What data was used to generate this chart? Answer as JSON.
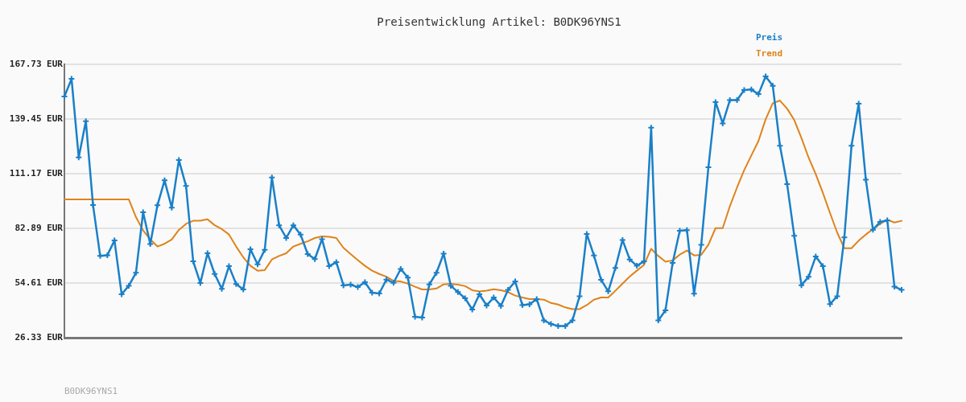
{
  "chart_data": {
    "type": "line",
    "title": "Preisentwicklung Artikel: B0DK96YNS1",
    "annotations": [
      "B0DK96YNS1"
    ],
    "categories": [
      null,
      null,
      null,
      null,
      null,
      null,
      null,
      null,
      null,
      null,
      null,
      null,
      null,
      null,
      null,
      null,
      null,
      null,
      null,
      null,
      null,
      null,
      null,
      null,
      null,
      null,
      null,
      null,
      null,
      null,
      null,
      null,
      null,
      null,
      null,
      null,
      null,
      null,
      null,
      null,
      null,
      null,
      null,
      null,
      null,
      null,
      null,
      null,
      null,
      null,
      null,
      null,
      null,
      null,
      null,
      null,
      null,
      null,
      null,
      null,
      null,
      null,
      null,
      null,
      null,
      null,
      null,
      null,
      null,
      null,
      null,
      null,
      null,
      null,
      null,
      null,
      null,
      null,
      null,
      null,
      null,
      null,
      null,
      null,
      null,
      null,
      null,
      null,
      null,
      null,
      null,
      null,
      null,
      null,
      null,
      null,
      null,
      null,
      null,
      null,
      null,
      null,
      null,
      null,
      null,
      null,
      null,
      null,
      null,
      null,
      null,
      null,
      null,
      null,
      null,
      null,
      null,
      null
    ],
    "series": [
      {
        "name": "Preis",
        "color": "#1a80c8",
        "marker": "cross",
        "values": [
          151.1,
          160.2,
          119.6,
          138.3,
          94.9,
          68.6,
          69.0,
          76.6,
          48.8,
          53.2,
          59.9,
          91.2,
          74.8,
          94.8,
          107.7,
          93.6,
          118.2,
          104.8,
          65.8,
          54.6,
          70.0,
          59.3,
          51.6,
          63.3,
          54.1,
          51.3,
          72.1,
          64.3,
          71.8,
          109.2,
          84.5,
          77.9,
          84.5,
          79.7,
          69.6,
          67.0,
          77.3,
          63.3,
          65.4,
          53.4,
          53.8,
          52.5,
          55.0,
          49.6,
          49.2,
          56.4,
          54.7,
          61.9,
          57.4,
          37.1,
          36.7,
          53.9,
          59.9,
          69.8,
          53.2,
          49.9,
          46.7,
          40.9,
          48.8,
          43.0,
          47.1,
          42.8,
          51.1,
          55.4,
          43.2,
          43.6,
          46.3,
          35.3,
          33.4,
          32.4,
          32.4,
          35.3,
          47.8,
          80.0,
          68.9,
          56.3,
          50.3,
          62.4,
          76.9,
          66.8,
          63.5,
          65.8,
          135.0,
          35.3,
          40.5,
          65.0,
          81.6,
          82.0,
          49.1,
          74.4,
          114.5,
          148.2,
          137.2,
          149.2,
          149.2,
          154.4,
          154.7,
          152.3,
          161.5,
          156.6,
          125.6,
          105.8,
          79.0,
          53.5,
          57.8,
          68.3,
          63.3,
          43.7,
          47.8,
          78.2,
          125.6,
          147.3,
          108.1,
          82.2,
          86.2,
          87.0,
          52.7,
          51.1
        ]
      },
      {
        "name": "Trend",
        "color": "#e0821a",
        "marker": "none",
        "values": [
          97.9,
          97.9,
          97.9,
          97.9,
          97.9,
          97.9,
          97.9,
          97.9,
          97.9,
          97.9,
          88.7,
          81.8,
          77.2,
          73.5,
          74.9,
          77.1,
          82.1,
          85.2,
          86.8,
          86.8,
          87.6,
          84.5,
          82.5,
          79.7,
          73.5,
          67.9,
          63.5,
          61.0,
          61.3,
          66.8,
          68.6,
          70.0,
          73.5,
          74.9,
          76.2,
          77.9,
          78.7,
          78.5,
          77.9,
          72.8,
          69.6,
          66.5,
          63.5,
          61.0,
          59.3,
          57.9,
          55.7,
          55.4,
          54.3,
          52.7,
          51.3,
          51.3,
          51.8,
          53.9,
          54.2,
          53.8,
          53.0,
          50.9,
          50.2,
          50.7,
          51.4,
          50.9,
          49.9,
          48.1,
          47.1,
          46.3,
          46.3,
          46.0,
          44.3,
          43.5,
          42.0,
          41.1,
          41.1,
          43.2,
          46.0,
          47.1,
          47.1,
          50.6,
          54.3,
          57.9,
          61.0,
          64.0,
          72.3,
          68.6,
          65.6,
          66.3,
          69.3,
          71.4,
          68.9,
          69.2,
          74.4,
          83.0,
          83.0,
          94.3,
          104.0,
          113.0,
          120.6,
          128.1,
          139.3,
          147.6,
          149.0,
          144.8,
          138.9,
          129.6,
          119.5,
          110.9,
          101.2,
          90.8,
          80.7,
          72.6,
          72.6,
          76.5,
          79.7,
          82.5,
          85.2,
          87.3,
          85.9,
          86.8
        ]
      }
    ],
    "ylim": [
      26.33,
      167.73
    ],
    "yticks": [
      {
        "value": 26.33,
        "label": "26.33 EUR"
      },
      {
        "value": 54.61,
        "label": "54.61 EUR"
      },
      {
        "value": 82.89,
        "label": "82.89 EUR"
      },
      {
        "value": 111.17,
        "label": "111.17 EUR"
      },
      {
        "value": 139.45,
        "label": "139.45 EUR"
      },
      {
        "value": 167.73,
        "label": "167.73 EUR"
      }
    ],
    "grid": "y",
    "legend": "top right",
    "tick_labels": "y"
  }
}
